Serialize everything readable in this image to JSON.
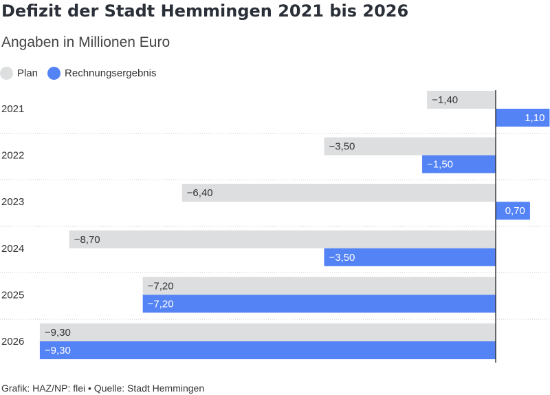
{
  "title": "Defizit der Stadt Hemmingen 2021 bis 2026",
  "subtitle": "Angaben in Millionen Euro",
  "legend": [
    {
      "label": "Plan",
      "color": "#dcdedf"
    },
    {
      "label": "Rechnungsergebnis",
      "color": "#5483f5"
    }
  ],
  "source": "Grafik: HAZ/NP: flei • Quelle: Stadt Hemmingen",
  "chart_data": {
    "type": "bar",
    "orientation": "horizontal",
    "categories": [
      "2021",
      "2022",
      "2023",
      "2024",
      "2025",
      "2026"
    ],
    "series": [
      {
        "name": "Plan",
        "color": "#dcdedf",
        "values": [
          -1.4,
          -3.5,
          -6.4,
          -8.7,
          -7.2,
          -9.3
        ],
        "labels": [
          "−1,40",
          "−3,50",
          "−6,40",
          "−8,70",
          "−7,20",
          "−9,30"
        ]
      },
      {
        "name": "Rechnungsergebnis",
        "color": "#5483f5",
        "values": [
          1.1,
          -1.5,
          0.7,
          -3.5,
          -7.2,
          -9.3
        ],
        "labels": [
          "1,10",
          "−1,50",
          "0,70",
          "−3,50",
          "−7,20",
          "−9,30"
        ]
      }
    ],
    "xlim": [
      -9.8,
      1.1
    ],
    "grid": "row separators"
  }
}
